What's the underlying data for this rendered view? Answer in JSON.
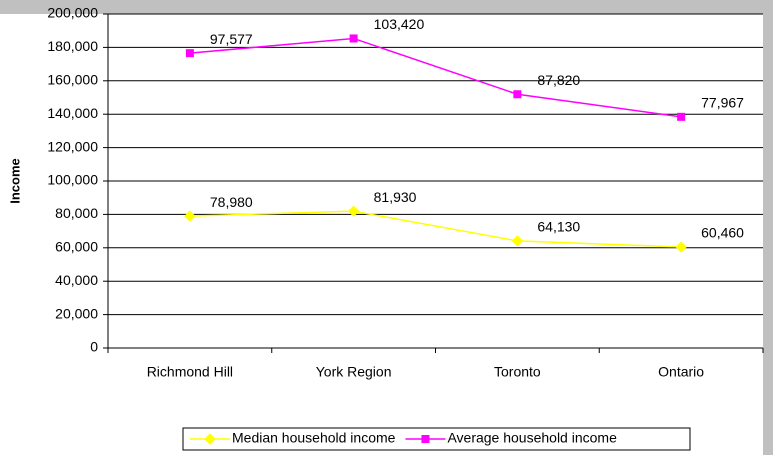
{
  "chart_data": {
    "type": "line",
    "stacked": true,
    "y_axis_label": "Income",
    "categories": [
      "Richmond Hill",
      "York Region",
      "Toronto",
      "Ontario"
    ],
    "series": [
      {
        "name": "Median household income",
        "color": "#ffff00",
        "marker": "diamond",
        "values": [
          78980,
          81930,
          64130,
          60460
        ],
        "value_labels": [
          "78,980",
          "81,930",
          "64,130",
          "60,460"
        ]
      },
      {
        "name": "Average household income",
        "color": "#ff00ff",
        "marker": "square",
        "values": [
          97577,
          103420,
          87820,
          77967
        ],
        "value_labels": [
          "97,577",
          "103,420",
          "87,820",
          "77,967"
        ]
      }
    ],
    "ylim": [
      0,
      200000
    ],
    "yticks": [
      {
        "value": 0,
        "label": "0"
      },
      {
        "value": 20000,
        "label": "20,000"
      },
      {
        "value": 40000,
        "label": "40,000"
      },
      {
        "value": 60000,
        "label": "60,000"
      },
      {
        "value": 80000,
        "label": "80,000"
      },
      {
        "value": 100000,
        "label": "100,000"
      },
      {
        "value": 120000,
        "label": "120,000"
      },
      {
        "value": 140000,
        "label": "140,000"
      },
      {
        "value": 160000,
        "label": "160,000"
      },
      {
        "value": 180000,
        "label": "180,000"
      },
      {
        "value": 200000,
        "label": "200,000"
      }
    ],
    "grid": true,
    "legend": "bottom"
  }
}
